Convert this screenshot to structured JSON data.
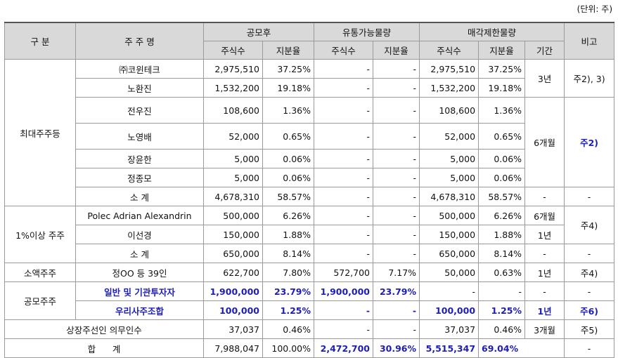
{
  "unit_note": "(단위: 주)",
  "headers": {
    "category": "구 분",
    "shareholder": "주 주 명",
    "after_ipo": "공모후",
    "tradable": "유통가능물량",
    "restricted": "매각제한물량",
    "remark": "비고",
    "shares": "주식수",
    "ratio": "지분율",
    "period": "기간"
  },
  "groups": {
    "largest": "최대주주등",
    "over1": "1%이상 주주",
    "minority": "소액주주",
    "public": "공모주주"
  },
  "rows": {
    "r1": {
      "name": "㈜코윈테크",
      "a_shares": "2,975,510",
      "a_ratio": "37.25%",
      "t_shares": "-",
      "t_ratio": "-",
      "s_shares": "2,975,510",
      "s_ratio": "37.25%",
      "period": "3년",
      "remark": "주2), 3)"
    },
    "r2": {
      "name": "노환진",
      "a_shares": "1,532,200",
      "a_ratio": "19.18%",
      "t_shares": "-",
      "t_ratio": "-",
      "s_shares": "1,532,200",
      "s_ratio": "19.18%"
    },
    "r3": {
      "name": "전우진",
      "a_shares": "108,600",
      "a_ratio": "1.36%",
      "t_shares": "-",
      "t_ratio": "-",
      "s_shares": "108,600",
      "s_ratio": "1.36%",
      "period": "6개월",
      "remark": "주2)"
    },
    "r4": {
      "name": "노영배",
      "a_shares": "52,000",
      "a_ratio": "0.65%",
      "t_shares": "-",
      "t_ratio": "-",
      "s_shares": "52,000",
      "s_ratio": "0.65%"
    },
    "r5": {
      "name": "장윤한",
      "a_shares": "5,000",
      "a_ratio": "0.06%",
      "t_shares": "-",
      "t_ratio": "-",
      "s_shares": "5,000",
      "s_ratio": "0.06%"
    },
    "r6": {
      "name": "정종모",
      "a_shares": "5,000",
      "a_ratio": "0.06%",
      "t_shares": "-",
      "t_ratio": "-",
      "s_shares": "5,000",
      "s_ratio": "0.06%"
    },
    "r7": {
      "name": "소 계",
      "a_shares": "4,678,310",
      "a_ratio": "58.57%",
      "t_shares": "-",
      "t_ratio": "-",
      "s_shares": "4,678,310",
      "s_ratio": "58.57%",
      "period": "-",
      "remark": "-"
    },
    "r8": {
      "name": "Polec Adrian Alexandrin",
      "a_shares": "500,000",
      "a_ratio": "6.26%",
      "t_shares": "-",
      "t_ratio": "-",
      "s_shares": "500,000",
      "s_ratio": "6.26%",
      "period": "6개월",
      "remark": "주4)"
    },
    "r9": {
      "name": "이선경",
      "a_shares": "150,000",
      "a_ratio": "1.88%",
      "t_shares": "-",
      "t_ratio": "-",
      "s_shares": "150,000",
      "s_ratio": "1.88%",
      "period": "1년"
    },
    "r10": {
      "name": "소 계",
      "a_shares": "650,000",
      "a_ratio": "8.14%",
      "t_shares": "-",
      "t_ratio": "-",
      "s_shares": "650,000",
      "s_ratio": "8.14%",
      "period": "-",
      "remark": "-"
    },
    "r11": {
      "name": "정OO 등 39인",
      "a_shares": "622,700",
      "a_ratio": "7.80%",
      "t_shares": "572,700",
      "t_ratio": "7.17%",
      "s_shares": "50,000",
      "s_ratio": "0.63%",
      "period": "1년",
      "remark": "주4)"
    },
    "r12": {
      "name": "일반 및 기관투자자",
      "a_shares": "1,900,000",
      "a_ratio": "23.79%",
      "t_shares": "1,900,000",
      "t_ratio": "23.79%",
      "s_shares": "-",
      "s_ratio": "-",
      "period": "-",
      "remark": "-"
    },
    "r13": {
      "name": "우리사주조합",
      "a_shares": "100,000",
      "a_ratio": "1.25%",
      "t_shares": "-",
      "t_ratio": "-",
      "s_shares": "100,000",
      "s_ratio": "1.25%",
      "period": "1년",
      "remark": "주6)"
    },
    "r14": {
      "name": "상장주선인 의무인수",
      "a_shares": "37,037",
      "a_ratio": "0.46%",
      "t_shares": "-",
      "t_ratio": "-",
      "s_shares": "37,037",
      "s_ratio": "0.46%",
      "period": "3개월",
      "remark": "주5)"
    },
    "r15": {
      "name": "합      계",
      "a_shares": "7,988,047",
      "a_ratio": "100.00%",
      "t_shares": "2,472,700",
      "t_ratio": "30.96%",
      "s_shares": "5,515,347",
      "s_ratio": "69.04%",
      "remark": "-"
    }
  }
}
